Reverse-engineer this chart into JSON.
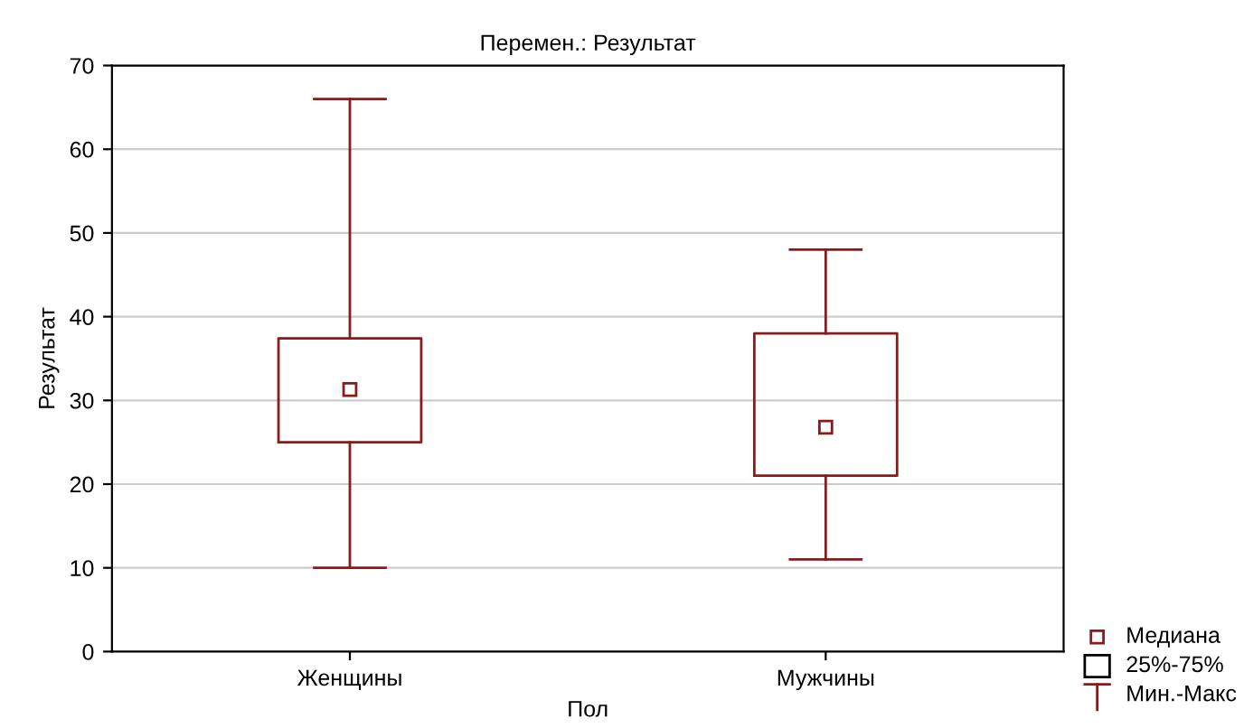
{
  "chart_data": {
    "type": "box",
    "title": "Перемен.: Результат",
    "xlabel": "Пол",
    "ylabel": "Результат",
    "categories": [
      "Женщины",
      "Мужчины"
    ],
    "boxes": [
      {
        "low": 10,
        "q1": 25,
        "median": 31.3,
        "q3": 37.4,
        "high": 66
      },
      {
        "low": 11,
        "q1": 21,
        "median": 26.8,
        "q3": 38,
        "high": 48
      }
    ],
    "color": "#8b1a1a",
    "ylim": [
      0,
      70
    ],
    "yticks": [
      0,
      10,
      20,
      30,
      40,
      50,
      60,
      70
    ],
    "grid": "y",
    "marker": "square",
    "annotations": [
      "Медиана",
      "25%-75%",
      "Мин.-Макс"
    ]
  }
}
